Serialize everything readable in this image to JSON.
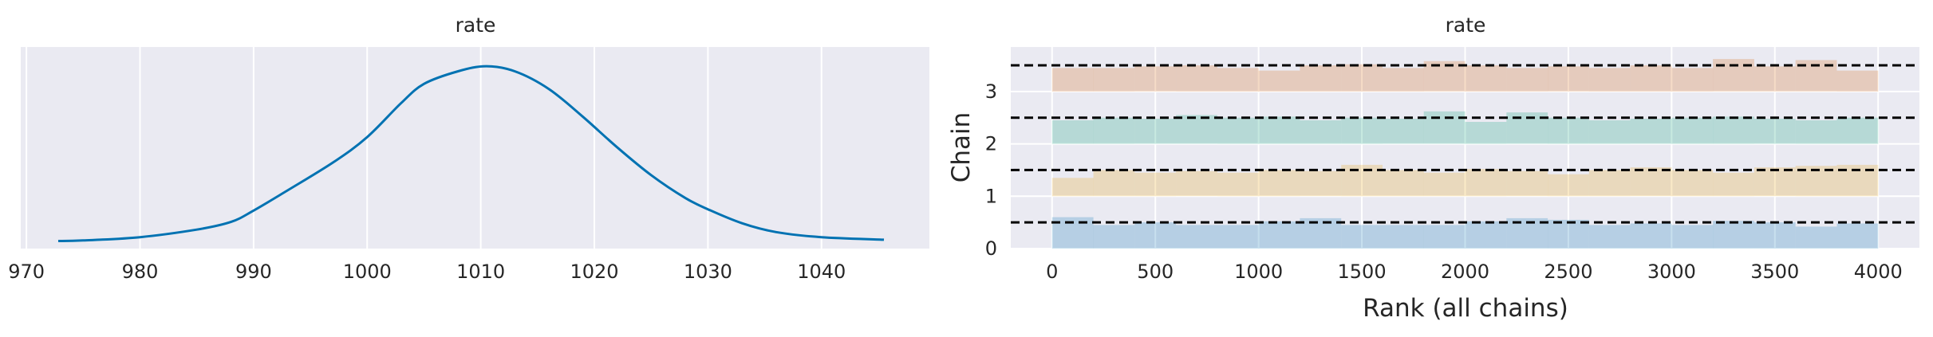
{
  "colors": {
    "plot_bg": "#eaeaf2",
    "grid": "#ffffff",
    "kde_line": "#0072b2",
    "chain_0": "#0072b2",
    "chain_1": "#e69f00",
    "chain_2": "#009e73",
    "chain_3": "#d55e00",
    "ref_line": "#000000"
  },
  "chart_data": [
    {
      "type": "line",
      "title": "rate",
      "xlabel": "",
      "ylabel": "",
      "xlim": [
        969.5,
        1049.5
      ],
      "x_ticks": [
        970,
        980,
        990,
        1000,
        1010,
        1020,
        1030,
        1040
      ],
      "y_ticks_visible": false,
      "grid": true,
      "series": [
        {
          "x": [
            972.8,
            975,
            980,
            985,
            988,
            990,
            993,
            997,
            1000,
            1003,
            1005,
            1008,
            1010.5,
            1013,
            1016,
            1019,
            1022,
            1025,
            1028,
            1030,
            1033,
            1036,
            1040,
            1045.5
          ],
          "y": [
            0.003,
            0.0032,
            0.0045,
            0.0075,
            0.0105,
            0.015,
            0.023,
            0.034,
            0.044,
            0.0575,
            0.065,
            0.07,
            0.072,
            0.07,
            0.063,
            0.052,
            0.04,
            0.029,
            0.02,
            0.0155,
            0.01,
            0.0065,
            0.0045,
            0.0035
          ]
        }
      ]
    },
    {
      "type": "bar",
      "title": "rate",
      "xlabel": "Rank (all chains)",
      "ylabel": "Chain",
      "xlim": [
        -200,
        4200
      ],
      "ylim": [
        0,
        3.85
      ],
      "x_ticks": [
        0,
        500,
        1000,
        1500,
        2000,
        2500,
        3000,
        3500,
        4000
      ],
      "y_ticks": [
        0,
        1,
        2,
        3
      ],
      "grid": true,
      "bin_edges": [
        0,
        200,
        400,
        600,
        800,
        1000,
        1200,
        1400,
        1600,
        1800,
        2000,
        2200,
        2400,
        2600,
        2800,
        3000,
        3200,
        3400,
        3600,
        3800,
        4000
      ],
      "reference_level": 0.5,
      "series": [
        {
          "name": "0",
          "offset": 0,
          "values": [
            0.6,
            0.45,
            0.5,
            0.45,
            0.45,
            0.52,
            0.58,
            0.45,
            0.45,
            0.45,
            0.52,
            0.58,
            0.55,
            0.45,
            0.48,
            0.45,
            0.53,
            0.5,
            0.42,
            0.48
          ]
        },
        {
          "name": "1",
          "offset": 1,
          "values": [
            0.35,
            0.5,
            0.45,
            0.48,
            0.45,
            0.5,
            0.48,
            0.6,
            0.5,
            0.45,
            0.52,
            0.48,
            0.42,
            0.5,
            0.55,
            0.5,
            0.45,
            0.55,
            0.58,
            0.6
          ]
        },
        {
          "name": "2",
          "offset": 2,
          "values": [
            0.45,
            0.5,
            0.48,
            0.55,
            0.5,
            0.52,
            0.45,
            0.5,
            0.48,
            0.62,
            0.42,
            0.6,
            0.5,
            0.45,
            0.48,
            0.5,
            0.52,
            0.48,
            0.45,
            0.5
          ]
        },
        {
          "name": "3",
          "offset": 3,
          "values": [
            0.45,
            0.45,
            0.48,
            0.5,
            0.45,
            0.4,
            0.5,
            0.52,
            0.45,
            0.58,
            0.5,
            0.45,
            0.48,
            0.45,
            0.5,
            0.45,
            0.62,
            0.48,
            0.6,
            0.4
          ]
        }
      ]
    }
  ]
}
